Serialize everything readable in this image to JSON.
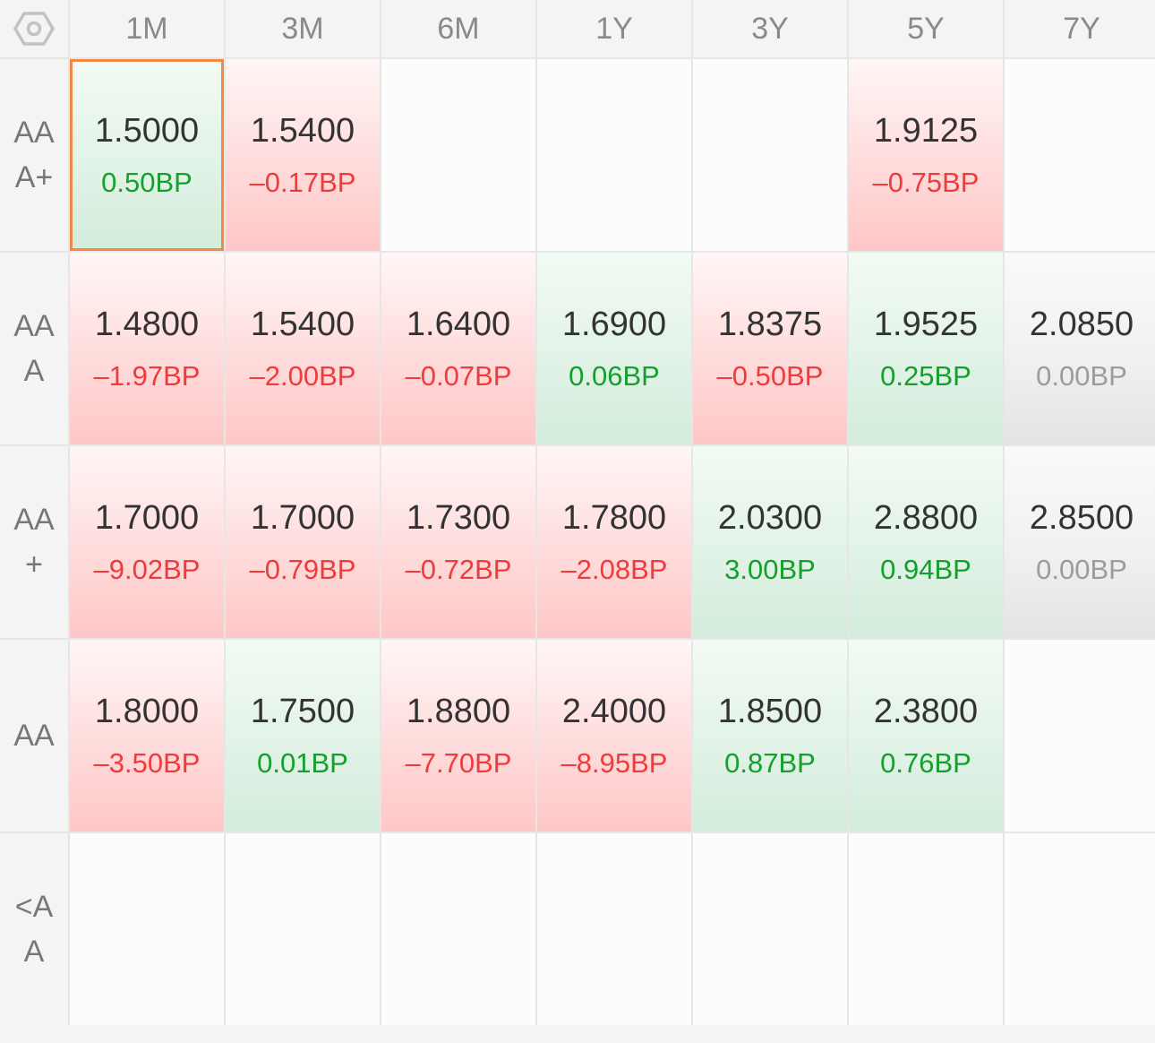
{
  "corner_icon": "hexagon-settings-icon",
  "columns": [
    "1M",
    "3M",
    "6M",
    "1Y",
    "3Y",
    "5Y",
    "7Y"
  ],
  "rows": [
    {
      "label": "AA\nA+",
      "cells": [
        {
          "value": "1.5000",
          "change": "0.50BP",
          "trend": "up",
          "selected": true
        },
        {
          "value": "1.5400",
          "change": "–0.17BP",
          "trend": "down"
        },
        {
          "value": "",
          "change": "",
          "trend": "empty"
        },
        {
          "value": "",
          "change": "",
          "trend": "empty"
        },
        {
          "value": "",
          "change": "",
          "trend": "empty"
        },
        {
          "value": "1.9125",
          "change": "–0.75BP",
          "trend": "down"
        },
        {
          "value": "",
          "change": "",
          "trend": "empty"
        }
      ]
    },
    {
      "label": "AA\nA",
      "cells": [
        {
          "value": "1.4800",
          "change": "–1.97BP",
          "trend": "down"
        },
        {
          "value": "1.5400",
          "change": "–2.00BP",
          "trend": "down"
        },
        {
          "value": "1.6400",
          "change": "–0.07BP",
          "trend": "down"
        },
        {
          "value": "1.6900",
          "change": "0.06BP",
          "trend": "up"
        },
        {
          "value": "1.8375",
          "change": "–0.50BP",
          "trend": "down"
        },
        {
          "value": "1.9525",
          "change": "0.25BP",
          "trend": "up"
        },
        {
          "value": "2.0850",
          "change": "0.00BP",
          "trend": "flat"
        }
      ]
    },
    {
      "label": "AA\n+",
      "cells": [
        {
          "value": "1.7000",
          "change": "–9.02BP",
          "trend": "down"
        },
        {
          "value": "1.7000",
          "change": "–0.79BP",
          "trend": "down"
        },
        {
          "value": "1.7300",
          "change": "–0.72BP",
          "trend": "down"
        },
        {
          "value": "1.7800",
          "change": "–2.08BP",
          "trend": "down"
        },
        {
          "value": "2.0300",
          "change": "3.00BP",
          "trend": "up"
        },
        {
          "value": "2.8800",
          "change": "0.94BP",
          "trend": "up"
        },
        {
          "value": "2.8500",
          "change": "0.00BP",
          "trend": "flat"
        }
      ]
    },
    {
      "label": "AA",
      "cells": [
        {
          "value": "1.8000",
          "change": "–3.50BP",
          "trend": "down"
        },
        {
          "value": "1.7500",
          "change": "0.01BP",
          "trend": "up"
        },
        {
          "value": "1.8800",
          "change": "–7.70BP",
          "trend": "down"
        },
        {
          "value": "2.4000",
          "change": "–8.95BP",
          "trend": "down"
        },
        {
          "value": "1.8500",
          "change": "0.87BP",
          "trend": "up"
        },
        {
          "value": "2.3800",
          "change": "0.76BP",
          "trend": "up"
        },
        {
          "value": "",
          "change": "",
          "trend": "empty"
        }
      ]
    },
    {
      "label": "<A\nA",
      "cells": [
        {
          "value": "",
          "change": "",
          "trend": "empty"
        },
        {
          "value": "",
          "change": "",
          "trend": "empty"
        },
        {
          "value": "",
          "change": "",
          "trend": "empty"
        },
        {
          "value": "",
          "change": "",
          "trend": "empty"
        },
        {
          "value": "",
          "change": "",
          "trend": "empty"
        },
        {
          "value": "",
          "change": "",
          "trend": "empty"
        },
        {
          "value": "",
          "change": "",
          "trend": "empty"
        }
      ]
    }
  ]
}
